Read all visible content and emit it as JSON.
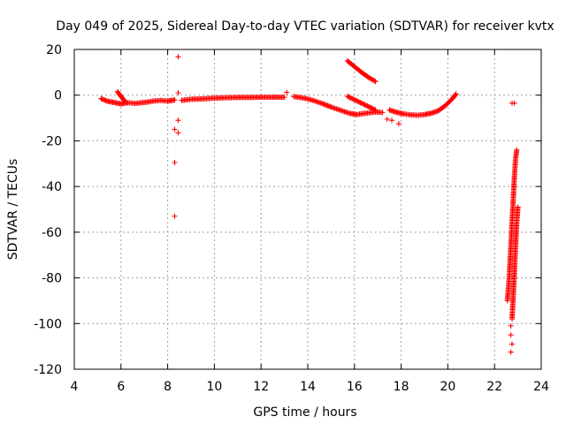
{
  "chart_data": {
    "type": "scatter",
    "title": "Day 049 of 2025, Sidereal Day-to-day VTEC variation (SDTVAR) for receiver kvtx",
    "xlabel": "GPS time / hours",
    "ylabel": "SDTVAR / TECUs",
    "xlim": [
      4,
      24
    ],
    "ylim": [
      -120,
      20
    ],
    "xticks": [
      "4",
      "6",
      "8",
      "10",
      "12",
      "14",
      "16",
      "18",
      "20",
      "22",
      "24"
    ],
    "yticks": [
      "20",
      "0",
      "-20",
      "-40",
      "-60",
      "-80",
      "-100",
      "-120"
    ],
    "grid": true,
    "marker": "plus",
    "color": "#ff0000",
    "series": [
      {
        "segments": [
          [
            [
              5.15,
              -1.5
            ],
            [
              5.4,
              -2.6
            ],
            [
              5.7,
              -3.2
            ],
            [
              6.0,
              -3.8
            ],
            [
              6.3,
              -3.3
            ],
            [
              6.6,
              -3.6
            ],
            [
              7.0,
              -3.2
            ],
            [
              7.4,
              -2.6
            ],
            [
              7.7,
              -2.3
            ],
            [
              8.0,
              -2.6
            ],
            [
              8.3,
              -2.1
            ]
          ],
          [
            [
              5.85,
              1.5
            ],
            [
              6.0,
              -0.5
            ],
            [
              6.15,
              -2.5
            ]
          ],
          [
            [
              8.6,
              -2.3
            ],
            [
              9.0,
              -1.8
            ],
            [
              9.5,
              -1.6
            ],
            [
              10.0,
              -1.3
            ],
            [
              10.5,
              -1.1
            ],
            [
              11.0,
              -1.0
            ],
            [
              11.5,
              -1.0
            ],
            [
              12.0,
              -0.9
            ],
            [
              12.5,
              -0.9
            ],
            [
              13.0,
              -0.9
            ]
          ],
          [
            [
              13.4,
              -0.6
            ],
            [
              13.8,
              -1.2
            ],
            [
              14.2,
              -2.2
            ],
            [
              14.6,
              -3.6
            ],
            [
              15.0,
              -5.2
            ],
            [
              15.4,
              -6.6
            ],
            [
              15.8,
              -8.0
            ],
            [
              16.1,
              -8.5
            ],
            [
              16.5,
              -7.9
            ],
            [
              16.9,
              -7.4
            ],
            [
              17.2,
              -7.6
            ]
          ],
          [
            [
              15.7,
              -0.5
            ],
            [
              16.0,
              -2.0
            ],
            [
              16.3,
              -3.5
            ],
            [
              16.6,
              -5.0
            ],
            [
              16.9,
              -6.5
            ]
          ],
          [
            [
              15.7,
              15.0
            ],
            [
              16.0,
              12.5
            ],
            [
              16.3,
              10.0
            ],
            [
              16.6,
              7.8
            ],
            [
              16.9,
              6.0
            ]
          ],
          [
            [
              17.5,
              -6.5
            ],
            [
              17.8,
              -7.5
            ],
            [
              18.1,
              -8.2
            ],
            [
              18.4,
              -8.6
            ],
            [
              18.7,
              -8.8
            ],
            [
              19.0,
              -8.5
            ],
            [
              19.3,
              -7.9
            ],
            [
              19.6,
              -6.8
            ],
            [
              19.9,
              -4.5
            ],
            [
              20.2,
              -1.5
            ],
            [
              20.35,
              0.5
            ]
          ],
          [
            [
              22.55,
              -90.0
            ],
            [
              22.6,
              -84.0
            ],
            [
              22.65,
              -76.0
            ],
            [
              22.7,
              -66.0
            ],
            [
              22.75,
              -56.0
            ],
            [
              22.8,
              -46.0
            ],
            [
              22.85,
              -36.0
            ],
            [
              22.9,
              -28.0
            ],
            [
              22.95,
              -24.0
            ]
          ],
          [
            [
              22.75,
              -98.0
            ],
            [
              22.8,
              -88.0
            ],
            [
              22.85,
              -78.0
            ],
            [
              22.9,
              -66.0
            ],
            [
              22.95,
              -56.0
            ],
            [
              23.0,
              -49.0
            ]
          ]
        ],
        "points": [
          [
            8.45,
            16.8
          ],
          [
            8.45,
            1.0
          ],
          [
            8.45,
            -11.0
          ],
          [
            8.3,
            -15.0
          ],
          [
            8.45,
            -16.5
          ],
          [
            8.3,
            -29.5
          ],
          [
            8.3,
            -53.0
          ],
          [
            13.1,
            1.2
          ],
          [
            17.4,
            -10.5
          ],
          [
            17.6,
            -11.0
          ],
          [
            17.9,
            -12.5
          ],
          [
            22.75,
            -3.5
          ],
          [
            22.85,
            -3.5
          ],
          [
            22.7,
            -101.0
          ],
          [
            22.7,
            -105.0
          ],
          [
            22.75,
            -109.0
          ],
          [
            22.7,
            -112.5
          ]
        ]
      }
    ]
  }
}
